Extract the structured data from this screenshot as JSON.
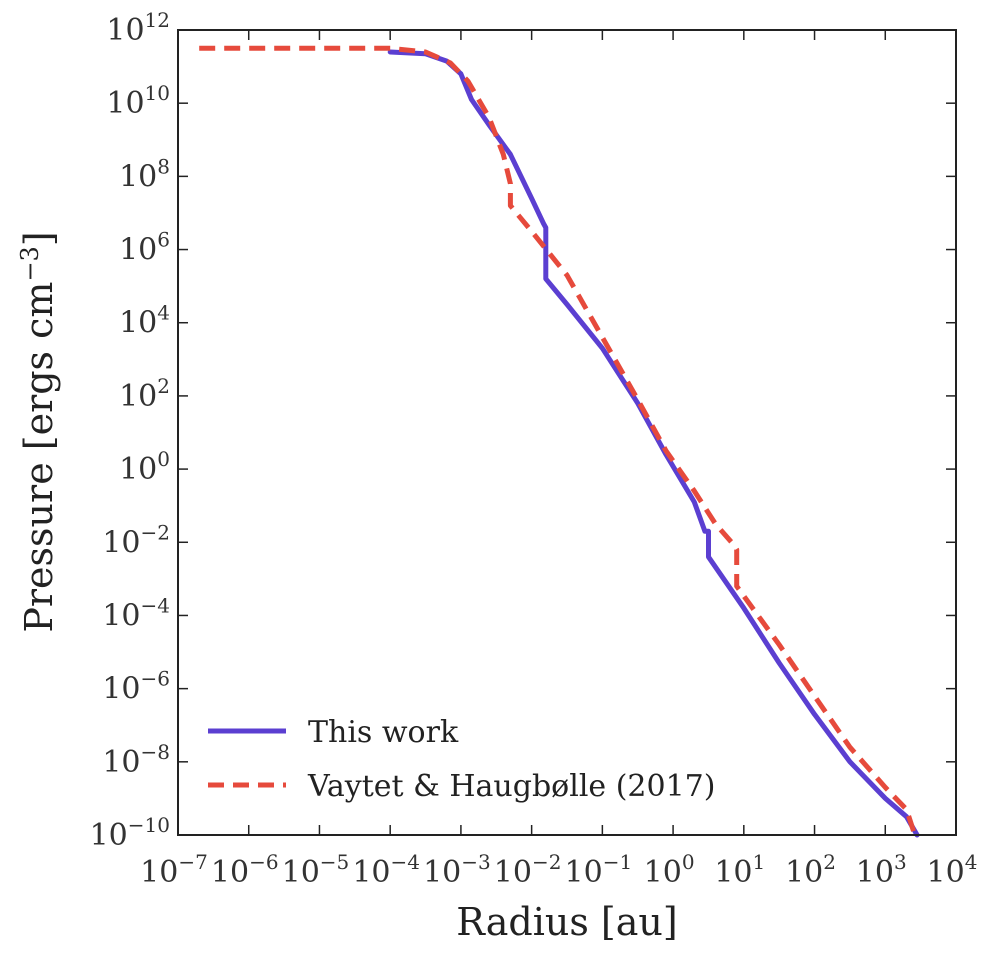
{
  "chart_data": {
    "type": "line",
    "xscale": "log",
    "yscale": "log",
    "xlabel": "Radius [au]",
    "ylabel": "Pressure [ergs cm",
    "ylabel_sup": "−3",
    "ylabel_close": "]",
    "xlim_exp": [
      -7,
      4
    ],
    "ylim_exp": [
      -10,
      12
    ],
    "xticks": [
      {
        "base": "10",
        "exp": "−7",
        "value": -7
      },
      {
        "base": "10",
        "exp": "−6",
        "value": -6
      },
      {
        "base": "10",
        "exp": "−5",
        "value": -5
      },
      {
        "base": "10",
        "exp": "−4",
        "value": -4
      },
      {
        "base": "10",
        "exp": "−3",
        "value": -3
      },
      {
        "base": "10",
        "exp": "−2",
        "value": -2
      },
      {
        "base": "10",
        "exp": "−1",
        "value": -1
      },
      {
        "base": "10",
        "exp": "0",
        "value": 0
      },
      {
        "base": "10",
        "exp": "1",
        "value": 1
      },
      {
        "base": "10",
        "exp": "2",
        "value": 2
      },
      {
        "base": "10",
        "exp": "3",
        "value": 3
      },
      {
        "base": "10",
        "exp": "4",
        "value": 4
      }
    ],
    "yticks": [
      {
        "base": "10",
        "exp": "12",
        "value": 12
      },
      {
        "base": "10",
        "exp": "10",
        "value": 10
      },
      {
        "base": "10",
        "exp": "8",
        "value": 8
      },
      {
        "base": "10",
        "exp": "6",
        "value": 6
      },
      {
        "base": "10",
        "exp": "4",
        "value": 4
      },
      {
        "base": "10",
        "exp": "2",
        "value": 2
      },
      {
        "base": "10",
        "exp": "0",
        "value": 0
      },
      {
        "base": "10",
        "exp": "−2",
        "value": -2
      },
      {
        "base": "10",
        "exp": "−4",
        "value": -4
      },
      {
        "base": "10",
        "exp": "−6",
        "value": -6
      },
      {
        "base": "10",
        "exp": "−8",
        "value": -8
      },
      {
        "base": "10",
        "exp": "−10",
        "value": -10
      }
    ],
    "legend_position": "lower-left",
    "series": [
      {
        "name": "This work",
        "color": "#5B3FD1",
        "style": "solid",
        "log_x": [
          -4.0,
          -3.5,
          -3.2,
          -3.0,
          -2.85,
          -2.6,
          -2.3,
          -2.0,
          -1.83,
          -1.8,
          -1.8,
          -1.5,
          -1.0,
          -0.5,
          -0.1,
          0.3,
          0.45,
          0.5,
          0.5,
          1.0,
          1.5,
          2.0,
          2.5,
          3.0,
          3.3,
          3.45
        ],
        "log_y": [
          11.4,
          11.35,
          11.15,
          10.8,
          10.1,
          9.4,
          8.6,
          7.4,
          6.7,
          6.6,
          5.2,
          4.5,
          3.3,
          1.8,
          0.4,
          -0.9,
          -1.7,
          -1.7,
          -2.4,
          -3.8,
          -5.3,
          -6.7,
          -8.0,
          -9.0,
          -9.5,
          -10.0
        ]
      },
      {
        "name": "Vaytet & Haugbølle (2017)",
        "color": "#E64A3C",
        "style": "dashed",
        "log_x": [
          -6.7,
          -5.0,
          -4.0,
          -3.5,
          -3.15,
          -2.9,
          -2.6,
          -2.4,
          -2.3,
          -2.3,
          -2.0,
          -1.5,
          -1.0,
          -0.5,
          -0.1,
          0.3,
          0.6,
          0.85,
          0.9,
          0.9,
          1.5,
          2.0,
          2.5,
          3.0,
          3.3,
          3.4
        ],
        "log_y": [
          11.5,
          11.5,
          11.5,
          11.4,
          11.1,
          10.6,
          9.6,
          8.6,
          7.8,
          7.2,
          6.5,
          5.3,
          3.6,
          1.9,
          0.5,
          -0.6,
          -1.5,
          -2.05,
          -2.2,
          -3.2,
          -4.8,
          -6.2,
          -7.6,
          -8.7,
          -9.3,
          -9.9
        ]
      }
    ]
  }
}
